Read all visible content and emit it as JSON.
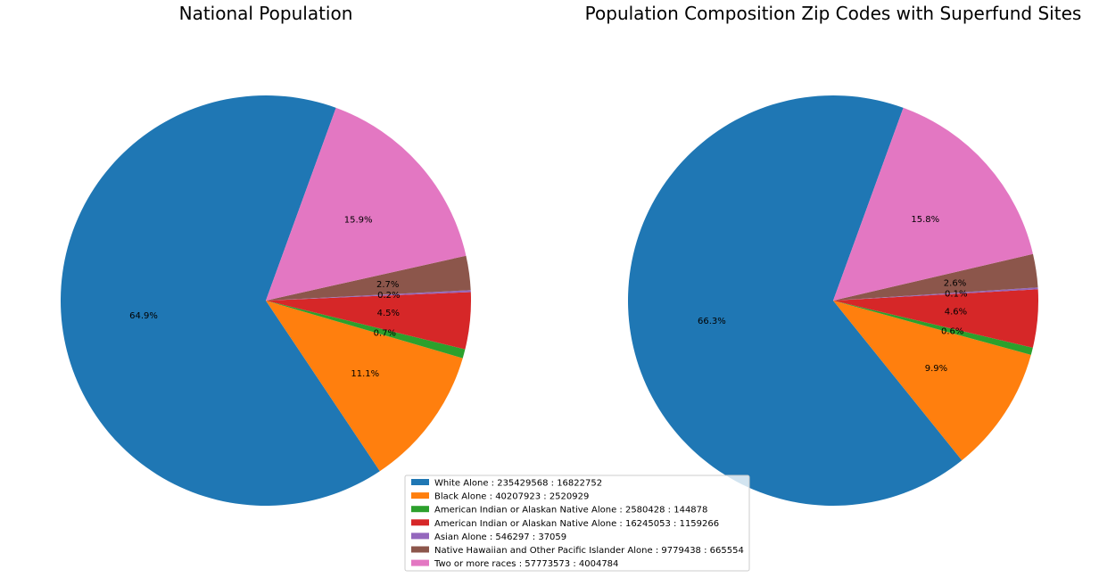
{
  "chart_data": [
    {
      "type": "pie",
      "title": "National Population",
      "start_angle_deg": 70,
      "direction": "counterclockwise",
      "categories": [
        "White Alone",
        "Black Alone",
        "American Indian or Alaskan Native Alone",
        "American Indian or Alaskan Native Alone",
        "Asian Alone",
        "Native Hawaiian and Other Pacific Islander Alone",
        "Two or more races"
      ],
      "values": [
        235429568,
        40207923,
        2580428,
        16245053,
        546297,
        9779438,
        57773573
      ],
      "labels": [
        "64.9%",
        "11.1%",
        "0.7%",
        "4.5%",
        "0.2%",
        "2.7%",
        "15.9%"
      ]
    },
    {
      "type": "pie",
      "title": "Population Composition Zip Codes with Superfund Sites",
      "start_angle_deg": 70,
      "direction": "counterclockwise",
      "categories": [
        "White Alone",
        "Black Alone",
        "American Indian or Alaskan Native Alone",
        "American Indian or Alaskan Native Alone",
        "Asian Alone",
        "Native Hawaiian and Other Pacific Islander Alone",
        "Two or more races"
      ],
      "values": [
        16822752,
        2520929,
        144878,
        1159266,
        37059,
        665554,
        4004784
      ],
      "labels": [
        "66.3%",
        "9.9%",
        "0.6%",
        "4.6%",
        "0.1%",
        "2.6%",
        "15.8%"
      ]
    }
  ],
  "legend": {
    "placement": "bottom-center",
    "entries": [
      "White Alone : 235429568 : 16822752",
      "Black Alone : 40207923 : 2520929",
      "American Indian or Alaskan Native Alone : 2580428 : 144878",
      "American Indian or Alaskan Native Alone : 16245053 : 1159266",
      "Asian Alone : 546297 : 37059",
      "Native Hawaiian and Other Pacific Islander Alone : 9779438 : 665554",
      "Two or more races : 57773573 : 4004784"
    ]
  },
  "colors": [
    "#1f77b4",
    "#ff7f0e",
    "#2ca02c",
    "#d62728",
    "#9467bd",
    "#8c564b",
    "#e377c2"
  ]
}
